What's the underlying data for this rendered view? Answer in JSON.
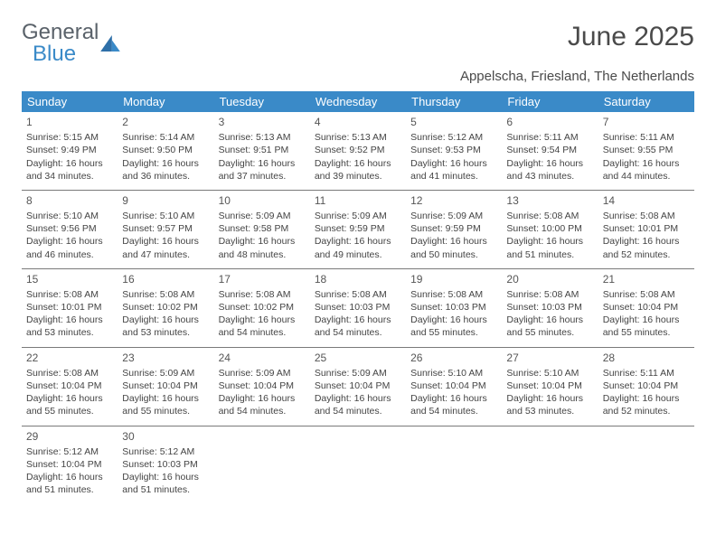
{
  "logo": {
    "word1": "General",
    "word2": "Blue"
  },
  "title": "June 2025",
  "location": "Appelscha, Friesland, The Netherlands",
  "colors": {
    "header_bg": "#3a8ac8",
    "header_fg": "#ffffff",
    "text": "#444444",
    "rule": "#7a7a7a",
    "logo_gray": "#5a626a",
    "logo_blue": "#3a8ac8"
  },
  "daynames": [
    "Sunday",
    "Monday",
    "Tuesday",
    "Wednesday",
    "Thursday",
    "Friday",
    "Saturday"
  ],
  "weeks": [
    [
      {
        "n": "1",
        "sr": "5:15 AM",
        "ss": "9:49 PM",
        "dl": "16 hours and 34 minutes."
      },
      {
        "n": "2",
        "sr": "5:14 AM",
        "ss": "9:50 PM",
        "dl": "16 hours and 36 minutes."
      },
      {
        "n": "3",
        "sr": "5:13 AM",
        "ss": "9:51 PM",
        "dl": "16 hours and 37 minutes."
      },
      {
        "n": "4",
        "sr": "5:13 AM",
        "ss": "9:52 PM",
        "dl": "16 hours and 39 minutes."
      },
      {
        "n": "5",
        "sr": "5:12 AM",
        "ss": "9:53 PM",
        "dl": "16 hours and 41 minutes."
      },
      {
        "n": "6",
        "sr": "5:11 AM",
        "ss": "9:54 PM",
        "dl": "16 hours and 43 minutes."
      },
      {
        "n": "7",
        "sr": "5:11 AM",
        "ss": "9:55 PM",
        "dl": "16 hours and 44 minutes."
      }
    ],
    [
      {
        "n": "8",
        "sr": "5:10 AM",
        "ss": "9:56 PM",
        "dl": "16 hours and 46 minutes."
      },
      {
        "n": "9",
        "sr": "5:10 AM",
        "ss": "9:57 PM",
        "dl": "16 hours and 47 minutes."
      },
      {
        "n": "10",
        "sr": "5:09 AM",
        "ss": "9:58 PM",
        "dl": "16 hours and 48 minutes."
      },
      {
        "n": "11",
        "sr": "5:09 AM",
        "ss": "9:59 PM",
        "dl": "16 hours and 49 minutes."
      },
      {
        "n": "12",
        "sr": "5:09 AM",
        "ss": "9:59 PM",
        "dl": "16 hours and 50 minutes."
      },
      {
        "n": "13",
        "sr": "5:08 AM",
        "ss": "10:00 PM",
        "dl": "16 hours and 51 minutes."
      },
      {
        "n": "14",
        "sr": "5:08 AM",
        "ss": "10:01 PM",
        "dl": "16 hours and 52 minutes."
      }
    ],
    [
      {
        "n": "15",
        "sr": "5:08 AM",
        "ss": "10:01 PM",
        "dl": "16 hours and 53 minutes."
      },
      {
        "n": "16",
        "sr": "5:08 AM",
        "ss": "10:02 PM",
        "dl": "16 hours and 53 minutes."
      },
      {
        "n": "17",
        "sr": "5:08 AM",
        "ss": "10:02 PM",
        "dl": "16 hours and 54 minutes."
      },
      {
        "n": "18",
        "sr": "5:08 AM",
        "ss": "10:03 PM",
        "dl": "16 hours and 54 minutes."
      },
      {
        "n": "19",
        "sr": "5:08 AM",
        "ss": "10:03 PM",
        "dl": "16 hours and 55 minutes."
      },
      {
        "n": "20",
        "sr": "5:08 AM",
        "ss": "10:03 PM",
        "dl": "16 hours and 55 minutes."
      },
      {
        "n": "21",
        "sr": "5:08 AM",
        "ss": "10:04 PM",
        "dl": "16 hours and 55 minutes."
      }
    ],
    [
      {
        "n": "22",
        "sr": "5:08 AM",
        "ss": "10:04 PM",
        "dl": "16 hours and 55 minutes."
      },
      {
        "n": "23",
        "sr": "5:09 AM",
        "ss": "10:04 PM",
        "dl": "16 hours and 55 minutes."
      },
      {
        "n": "24",
        "sr": "5:09 AM",
        "ss": "10:04 PM",
        "dl": "16 hours and 54 minutes."
      },
      {
        "n": "25",
        "sr": "5:09 AM",
        "ss": "10:04 PM",
        "dl": "16 hours and 54 minutes."
      },
      {
        "n": "26",
        "sr": "5:10 AM",
        "ss": "10:04 PM",
        "dl": "16 hours and 54 minutes."
      },
      {
        "n": "27",
        "sr": "5:10 AM",
        "ss": "10:04 PM",
        "dl": "16 hours and 53 minutes."
      },
      {
        "n": "28",
        "sr": "5:11 AM",
        "ss": "10:04 PM",
        "dl": "16 hours and 52 minutes."
      }
    ],
    [
      {
        "n": "29",
        "sr": "5:12 AM",
        "ss": "10:04 PM",
        "dl": "16 hours and 51 minutes."
      },
      {
        "n": "30",
        "sr": "5:12 AM",
        "ss": "10:03 PM",
        "dl": "16 hours and 51 minutes."
      },
      null,
      null,
      null,
      null,
      null
    ]
  ],
  "labels": {
    "sunrise": "Sunrise: ",
    "sunset": "Sunset: ",
    "daylight": "Daylight: "
  }
}
